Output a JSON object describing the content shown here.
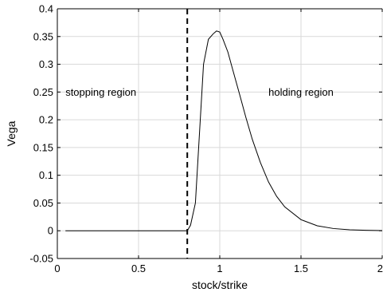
{
  "chart_data": {
    "type": "line",
    "title": "",
    "xlabel": "stock/strike",
    "ylabel": "Vega",
    "xlim": [
      0,
      2
    ],
    "ylim": [
      -0.05,
      0.4
    ],
    "x_ticks": [
      0,
      0.5,
      1,
      1.5,
      2
    ],
    "x_tick_labels": [
      "0",
      "0.5",
      "1",
      "1.5",
      "2"
    ],
    "y_ticks": [
      -0.05,
      0,
      0.05,
      0.1,
      0.15,
      0.2,
      0.25,
      0.3,
      0.35,
      0.4
    ],
    "y_tick_labels": [
      "-0.05",
      "0",
      "0.05",
      "0.1",
      "0.15",
      "0.2",
      "0.25",
      "0.3",
      "0.35",
      "0.4"
    ],
    "grid": true,
    "boundary_x": 0.8,
    "annotations": [
      {
        "text": "stopping region",
        "x": 0.05,
        "y": 0.25
      },
      {
        "text": "holding region",
        "x": 1.5,
        "y": 0.25
      }
    ],
    "series": [
      {
        "x": [
          0.05,
          0.78,
          0.8,
          0.82,
          0.85,
          0.88,
          0.9,
          0.93,
          0.96,
          0.98,
          1.0,
          1.02,
          1.05,
          1.08,
          1.12,
          1.16,
          1.2,
          1.25,
          1.3,
          1.35,
          1.4,
          1.5,
          1.6,
          1.7,
          1.8,
          1.9,
          2.0
        ],
        "y": [
          0.0,
          0.0,
          0.0,
          0.01,
          0.05,
          0.2,
          0.3,
          0.345,
          0.355,
          0.36,
          0.358,
          0.345,
          0.322,
          0.29,
          0.248,
          0.205,
          0.165,
          0.123,
          0.088,
          0.062,
          0.043,
          0.02,
          0.009,
          0.004,
          0.0018,
          0.0008,
          0.0003
        ]
      }
    ]
  }
}
